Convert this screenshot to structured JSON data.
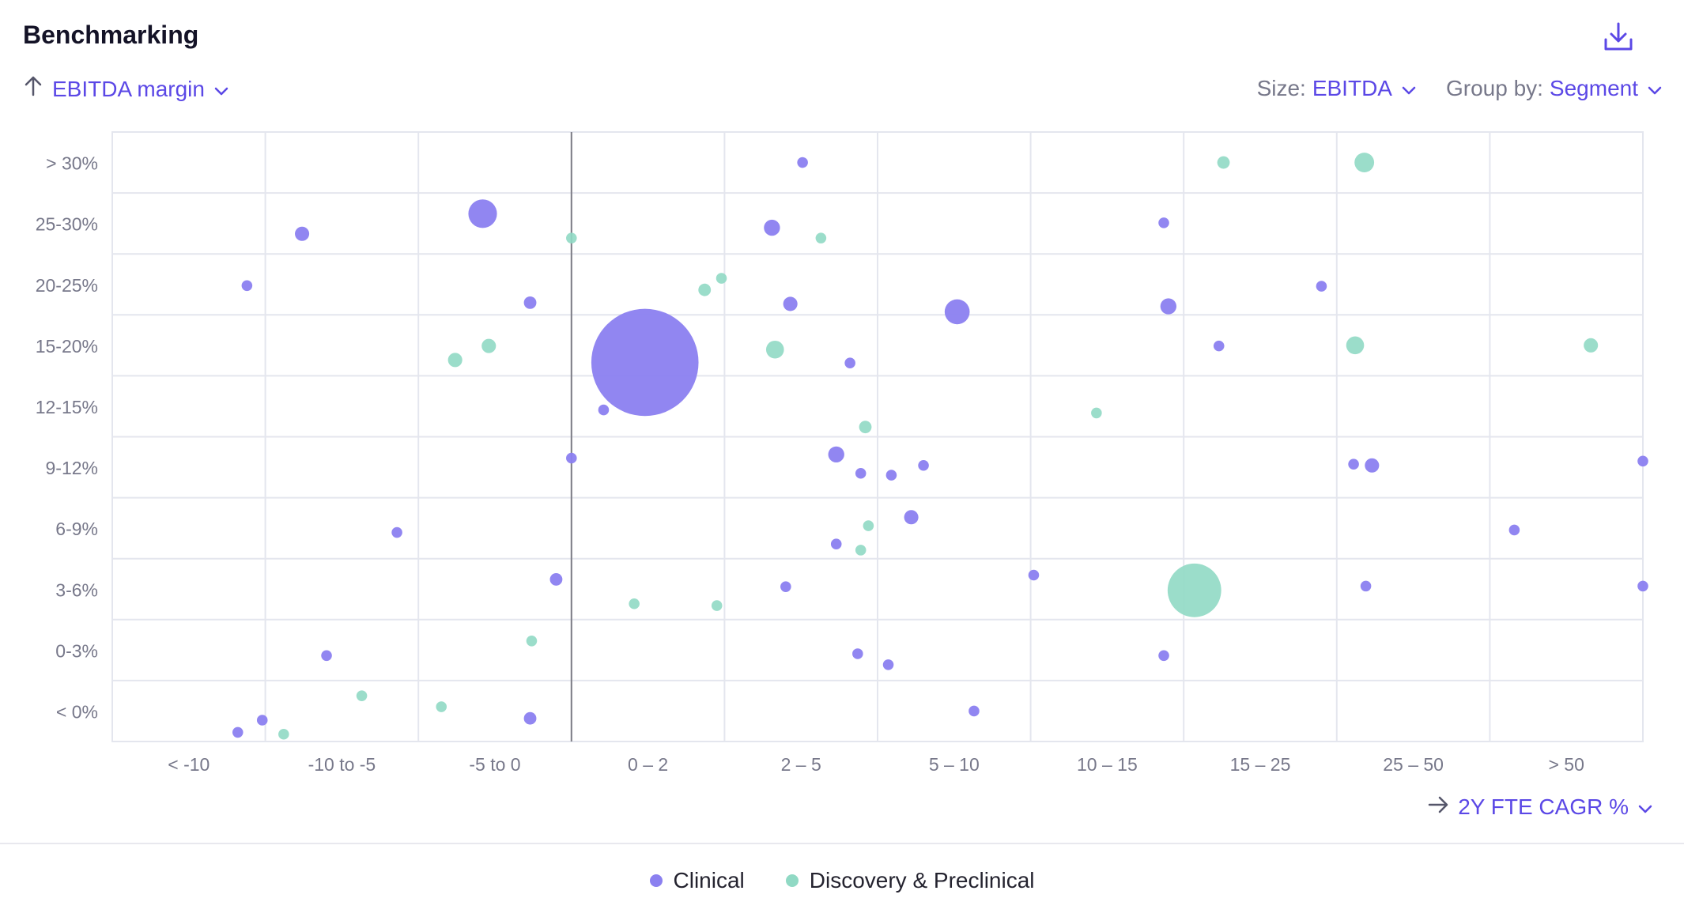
{
  "header": {
    "title": "Benchmarking",
    "download_icon": "download-icon"
  },
  "y_selector": {
    "value": "EBITDA margin",
    "icon": "arrow-up-icon"
  },
  "size_selector": {
    "label": "Size:",
    "value": "EBITDA"
  },
  "group_selector": {
    "label": "Group by:",
    "value": "Segment"
  },
  "x_selector": {
    "value": "2Y FTE CAGR %",
    "icon": "arrow-right-icon"
  },
  "colors": {
    "accent": "#5b48e6",
    "clinical": "#8b80f0",
    "discovery": "#90d9c4",
    "grid": "#e4e6ee",
    "tick": "#77788a"
  },
  "legend": [
    {
      "label": "Clinical",
      "color": "#8b80f0"
    },
    {
      "label": "Discovery & Preclinical",
      "color": "#90d9c4"
    }
  ],
  "chart_data": {
    "type": "scatter",
    "title": "",
    "xlabel": "2Y FTE CAGR %",
    "ylabel": "EBITDA margin",
    "x_categories": [
      "< -10",
      "-10 to -5",
      "-5 to 0",
      "0 – 2",
      "2 – 5",
      "5 – 10",
      "10 – 15",
      "15 – 25",
      "25 – 50",
      "> 50"
    ],
    "y_categories": [
      "< 0%",
      "0-3%",
      "3-6%",
      "6-9%",
      "9-12%",
      "12-15%",
      "15-20%",
      "20-25%",
      "25-30%",
      "> 30%"
    ],
    "x_range": [
      0,
      10
    ],
    "y_range": [
      0,
      10
    ],
    "reference_line_x": 3,
    "grid": true,
    "legend_position": "bottom",
    "size_metric": "EBITDA",
    "series": [
      {
        "name": "Clinical",
        "points": [
          {
            "x": 4.31,
            "y": 8.43,
            "size": 9
          },
          {
            "x": 4.51,
            "y": 9.5,
            "size": 6
          },
          {
            "x": 1.24,
            "y": 8.33,
            "size": 8
          },
          {
            "x": 2.42,
            "y": 8.66,
            "size": 16
          },
          {
            "x": 0.88,
            "y": 7.48,
            "size": 6
          },
          {
            "x": 2.73,
            "y": 7.2,
            "size": 7
          },
          {
            "x": 4.43,
            "y": 7.18,
            "size": 8
          },
          {
            "x": 5.52,
            "y": 7.05,
            "size": 14
          },
          {
            "x": 6.87,
            "y": 8.51,
            "size": 6
          },
          {
            "x": 6.9,
            "y": 7.14,
            "size": 9
          },
          {
            "x": 7.9,
            "y": 7.47,
            "size": 6
          },
          {
            "x": 3.48,
            "y": 6.22,
            "size": 60
          },
          {
            "x": 4.82,
            "y": 6.21,
            "size": 6
          },
          {
            "x": 7.23,
            "y": 6.49,
            "size": 6
          },
          {
            "x": 3.21,
            "y": 5.44,
            "size": 6
          },
          {
            "x": 3.0,
            "y": 4.65,
            "size": 6
          },
          {
            "x": 4.73,
            "y": 4.71,
            "size": 9
          },
          {
            "x": 4.89,
            "y": 4.4,
            "size": 6
          },
          {
            "x": 5.09,
            "y": 4.37,
            "size": 6
          },
          {
            "x": 5.3,
            "y": 4.53,
            "size": 6
          },
          {
            "x": 8.11,
            "y": 4.55,
            "size": 6
          },
          {
            "x": 8.23,
            "y": 4.53,
            "size": 8
          },
          {
            "x": 10.0,
            "y": 4.6,
            "size": 6
          },
          {
            "x": 1.86,
            "y": 3.43,
            "size": 6
          },
          {
            "x": 5.22,
            "y": 3.68,
            "size": 8
          },
          {
            "x": 4.73,
            "y": 3.24,
            "size": 6
          },
          {
            "x": 2.9,
            "y": 2.66,
            "size": 7
          },
          {
            "x": 4.4,
            "y": 2.54,
            "size": 6
          },
          {
            "x": 6.02,
            "y": 2.73,
            "size": 6
          },
          {
            "x": 8.19,
            "y": 2.55,
            "size": 6
          },
          {
            "x": 9.16,
            "y": 3.47,
            "size": 6
          },
          {
            "x": 10.0,
            "y": 2.55,
            "size": 6
          },
          {
            "x": 1.4,
            "y": 1.41,
            "size": 6
          },
          {
            "x": 4.87,
            "y": 1.44,
            "size": 6
          },
          {
            "x": 5.07,
            "y": 1.26,
            "size": 6
          },
          {
            "x": 6.87,
            "y": 1.41,
            "size": 6
          },
          {
            "x": 0.82,
            "y": 0.15,
            "size": 6
          },
          {
            "x": 0.98,
            "y": 0.35,
            "size": 6
          },
          {
            "x": 2.73,
            "y": 0.38,
            "size": 7
          },
          {
            "x": 5.63,
            "y": 0.5,
            "size": 6
          }
        ]
      },
      {
        "name": "Discovery & Preclinical",
        "points": [
          {
            "x": 7.26,
            "y": 9.5,
            "size": 7
          },
          {
            "x": 8.18,
            "y": 9.5,
            "size": 11
          },
          {
            "x": 3.0,
            "y": 8.26,
            "size": 6
          },
          {
            "x": 4.63,
            "y": 8.26,
            "size": 6
          },
          {
            "x": 3.87,
            "y": 7.41,
            "size": 7
          },
          {
            "x": 3.98,
            "y": 7.6,
            "size": 6
          },
          {
            "x": 2.24,
            "y": 6.26,
            "size": 8
          },
          {
            "x": 2.46,
            "y": 6.49,
            "size": 8
          },
          {
            "x": 4.33,
            "y": 6.43,
            "size": 10
          },
          {
            "x": 8.12,
            "y": 6.5,
            "size": 10
          },
          {
            "x": 9.66,
            "y": 6.5,
            "size": 8
          },
          {
            "x": 6.43,
            "y": 5.39,
            "size": 6
          },
          {
            "x": 4.92,
            "y": 5.16,
            "size": 7
          },
          {
            "x": 4.94,
            "y": 3.54,
            "size": 6
          },
          {
            "x": 4.89,
            "y": 3.14,
            "size": 6
          },
          {
            "x": 3.41,
            "y": 2.26,
            "size": 6
          },
          {
            "x": 3.95,
            "y": 2.23,
            "size": 6
          },
          {
            "x": 7.07,
            "y": 2.48,
            "size": 30
          },
          {
            "x": 2.74,
            "y": 1.65,
            "size": 6
          },
          {
            "x": 1.63,
            "y": 0.75,
            "size": 6
          },
          {
            "x": 2.15,
            "y": 0.57,
            "size": 6
          },
          {
            "x": 1.12,
            "y": 0.12,
            "size": 6
          }
        ]
      }
    ]
  }
}
